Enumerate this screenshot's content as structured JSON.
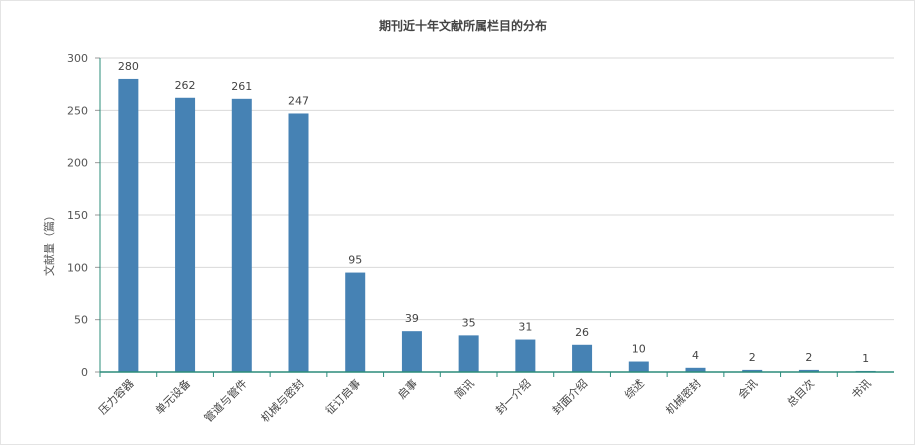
{
  "chart_data": {
    "type": "bar",
    "title": "期刊近十年文献所属栏目的分布",
    "ylabel": "文献量（篇）",
    "xlabel": "",
    "categories": [
      "压力容器",
      "单元设备",
      "管道与管件",
      "机械与密封",
      "征订启事",
      "启事",
      "简讯",
      "封一介绍",
      "封面介绍",
      "综述",
      "机械密封",
      "会讯",
      "总目次",
      "书讯"
    ],
    "values": [
      280,
      262,
      261,
      247,
      95,
      39,
      35,
      31,
      26,
      10,
      4,
      2,
      2,
      1
    ],
    "ylim": [
      0,
      300
    ],
    "yticks": [
      0,
      50,
      100,
      150,
      200,
      250,
      300
    ],
    "grid": true,
    "bar_color": "#4682b4",
    "axis_color": "#2b8c7a"
  }
}
